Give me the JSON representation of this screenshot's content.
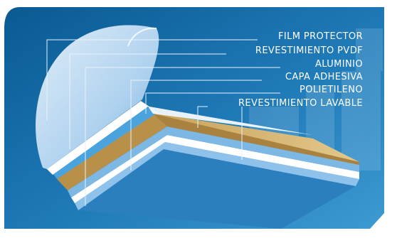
{
  "layers": [
    {
      "label": "FILM PROTECTOR",
      "color": "#cfe3f6"
    },
    {
      "label": "REVESTIMIENTO PVDF",
      "color": "#ffffff"
    },
    {
      "label": "ALUMINIO",
      "color": "#c9c9cf"
    },
    {
      "label": "CAPA ADHESIVA",
      "color": "#4aa3dc"
    },
    {
      "label": "POLIETILENO",
      "color": "#c49a4e"
    },
    {
      "label": "REVESTIMIENTO LAVABLE",
      "color": "#9ecbea"
    }
  ],
  "colors": {
    "background_dark": "#0b5f95",
    "background_light": "#3b96cf",
    "leader_line": "#e6f1fa"
  }
}
